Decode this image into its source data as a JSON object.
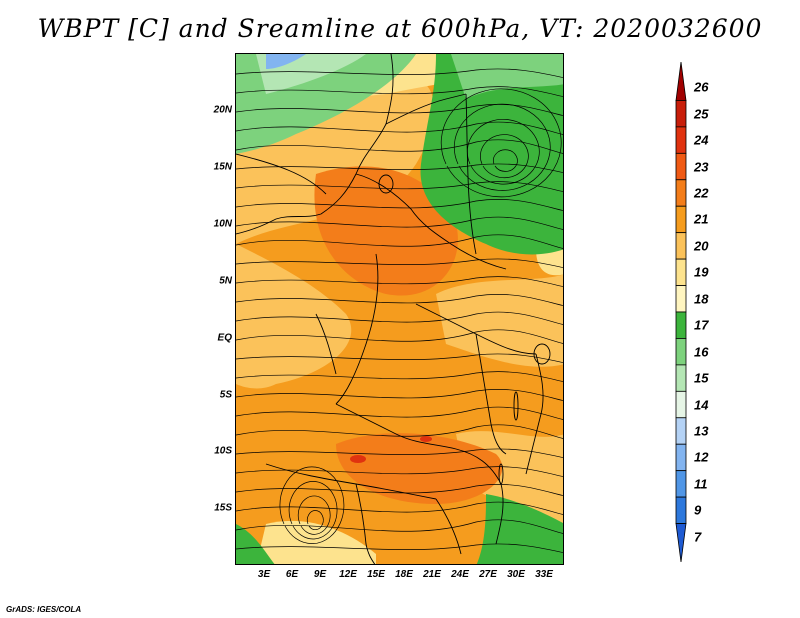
{
  "title": "WBPT [C] and Sreamline at 600hPa, VT: 2020032600",
  "credit": "GrADS: IGES/COLA",
  "lat_labels": [
    "20N",
    "15N",
    "10N",
    "5N",
    "EQ",
    "5S",
    "10S",
    "15S"
  ],
  "lon_labels": [
    "3E",
    "6E",
    "9E",
    "12E",
    "15E",
    "18E",
    "21E",
    "24E",
    "27E",
    "30E",
    "33E"
  ],
  "colorbar": {
    "labels": [
      "26",
      "25",
      "24",
      "23",
      "22",
      "21",
      "20",
      "19",
      "18",
      "17",
      "16",
      "15",
      "14",
      "13",
      "12",
      "11",
      "9",
      "7"
    ],
    "colors": [
      "#a00000",
      "#c81e0a",
      "#e0320f",
      "#f05a14",
      "#f37d1a",
      "#f59c1e",
      "#fbc25a",
      "#fde38e",
      "#fff5c0",
      "#3cb43c",
      "#7dd27d",
      "#b4e6b4",
      "#e6f5e6",
      "#b4d2f5",
      "#82b4f0",
      "#5096e6",
      "#2d78dc",
      "#1e5ad2"
    ]
  },
  "map": {
    "field_colors": {
      "orange_dark": "#f37d1a",
      "orange": "#f59c1e",
      "light_orange": "#fbc25a",
      "yellow": "#fde38e",
      "green": "#3cb43c",
      "light_green": "#7dd27d",
      "pale_green": "#b4e6b4",
      "blue": "#82b4f0",
      "red": "#e0320f"
    }
  }
}
